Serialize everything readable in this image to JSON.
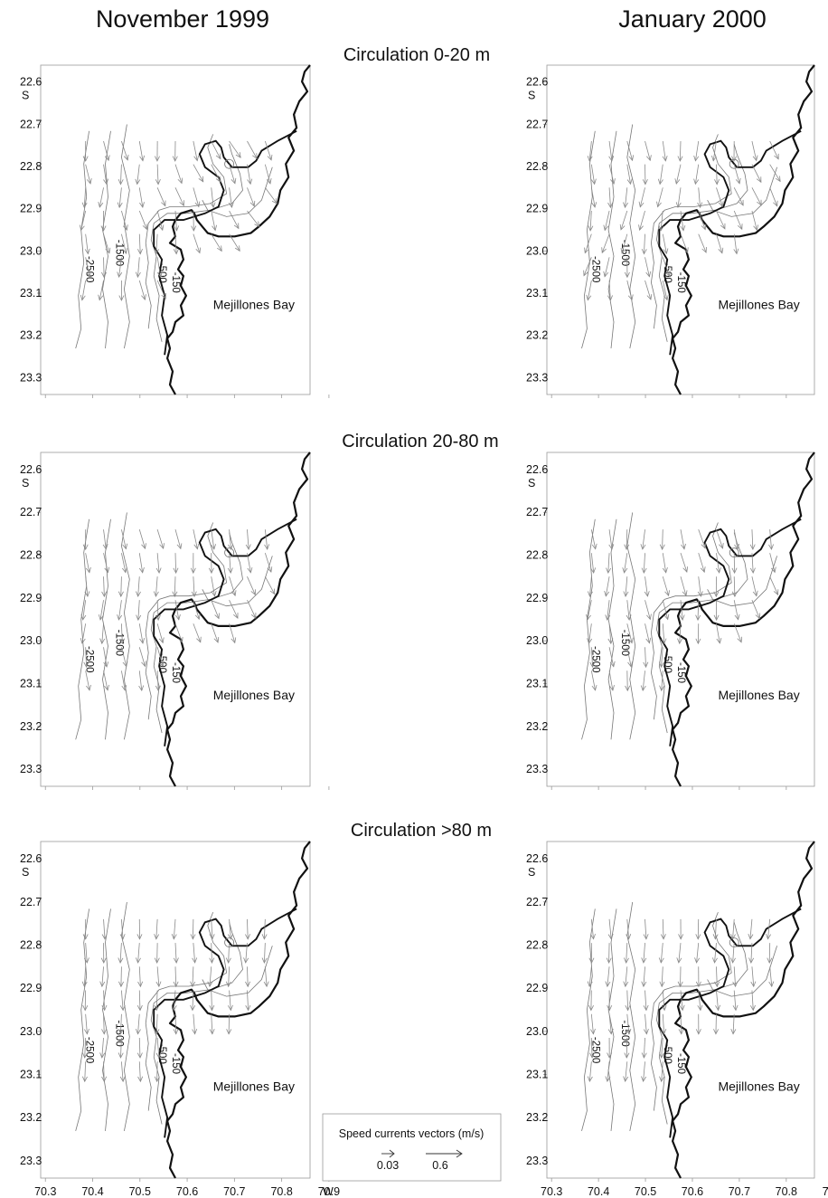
{
  "figure": {
    "columns": [
      "November 1999",
      "January 2000"
    ],
    "rows": [
      "Circulation 0-20 m",
      "Circulation 20-80 m",
      "Circulation >80 m"
    ],
    "lat_ticks": [
      "22.6",
      "22.7",
      "22.8",
      "22.9",
      "23.0",
      "23.1",
      "23.2",
      "23.3"
    ],
    "lat_hemisphere": "S",
    "lon_ticks": [
      "70.9",
      "70.8",
      "70.7",
      "70.6",
      "70.5",
      "70.4",
      "70.3"
    ],
    "lon_hemisphere": "W",
    "place_label": "Mejillones Bay",
    "contour_labels": [
      "-2500",
      "-1500",
      "-500",
      "-150"
    ],
    "legend": {
      "title": "Speed currents vectors (m/s)",
      "scale_small": "0.03",
      "scale_large": "0.6"
    }
  },
  "map_data": {
    "lat_range": [
      22.56,
      23.34
    ],
    "lon_range": [
      70.29,
      70.86
    ],
    "current_field": {
      "lat_start": 22.74,
      "lat_step": 0.055,
      "lon_start": 70.765,
      "lon_step": 0.038,
      "rows": 9,
      "cols": 11
    },
    "panels": [
      {
        "column": "November 1999",
        "depth": "0-20 m",
        "pattern": 0
      },
      {
        "column": "January 2000",
        "depth": "0-20 m",
        "pattern": 1
      },
      {
        "column": "November 1999",
        "depth": "20-80 m",
        "pattern": 2
      },
      {
        "column": "January 2000",
        "depth": "20-80 m",
        "pattern": 3
      },
      {
        "column": "November 1999",
        "depth": ">80 m",
        "pattern": 4
      },
      {
        "column": "January 2000",
        "depth": ">80 m",
        "pattern": 5
      }
    ]
  }
}
